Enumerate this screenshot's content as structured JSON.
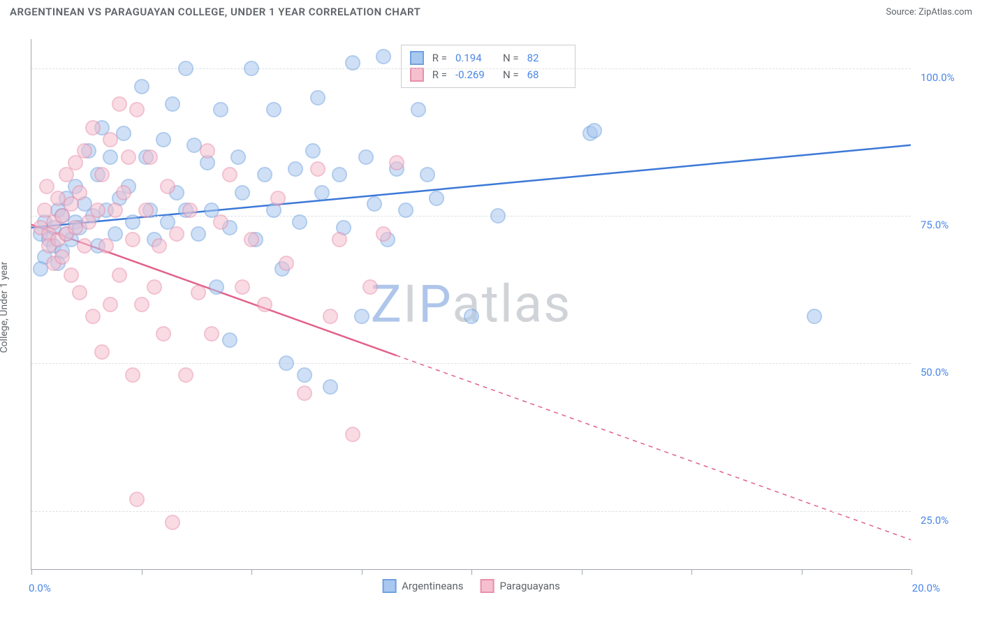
{
  "header": {
    "title": "ARGENTINEAN VS PARAGUAYAN COLLEGE, UNDER 1 YEAR CORRELATION CHART",
    "source": "Source: ZipAtlas.com"
  },
  "chart": {
    "type": "scatter",
    "ylabel": "College, Under 1 year",
    "background_color": "#ffffff",
    "grid_color": "#dcdfe3",
    "axis_color": "#a0a6ad",
    "tick_label_color": "#4a86e8",
    "label_color": "#5f6368",
    "xlim": [
      0,
      20
    ],
    "ylim": [
      15,
      105
    ],
    "xticks": [
      0,
      2.5,
      5,
      7.5,
      10,
      12.5,
      15,
      17.5,
      20
    ],
    "xtick_labels": {
      "0": "0.0%",
      "20": "20.0%"
    },
    "yticks": [
      25,
      50,
      75,
      100
    ],
    "ytick_labels": {
      "25": "25.0%",
      "50": "50.0%",
      "75": "75.0%",
      "100": "100.0%"
    },
    "marker_radius": 11,
    "marker_opacity": 0.55,
    "marker_stroke_width": 2,
    "trend_width": 2.5,
    "watermark": "ZIPatlas",
    "legend_box": {
      "left_pct": 42,
      "top_pct": 1
    },
    "series": [
      {
        "name": "Argentineans",
        "fill": "#a9c8ef",
        "stroke": "#6fa1df",
        "trend_color": "#3b78d8",
        "r": "0.194",
        "n": "82",
        "trend": {
          "x1": 0,
          "y1": 73,
          "x2": 20,
          "y2": 87,
          "dashed_after_x": null
        },
        "points": [
          [
            0.2,
            72
          ],
          [
            0.3,
            74
          ],
          [
            0.4,
            71
          ],
          [
            0.5,
            73
          ],
          [
            0.5,
            70
          ],
          [
            0.6,
            76
          ],
          [
            0.7,
            69
          ],
          [
            0.7,
            75
          ],
          [
            0.8,
            72
          ],
          [
            0.8,
            78
          ],
          [
            0.9,
            71
          ],
          [
            1.0,
            74
          ],
          [
            1.0,
            80
          ],
          [
            1.1,
            73
          ],
          [
            1.2,
            77
          ],
          [
            1.3,
            86
          ],
          [
            1.4,
            75
          ],
          [
            1.5,
            82
          ],
          [
            1.5,
            70
          ],
          [
            1.6,
            90
          ],
          [
            1.7,
            76
          ],
          [
            1.8,
            85
          ],
          [
            1.9,
            72
          ],
          [
            2.0,
            78
          ],
          [
            2.1,
            89
          ],
          [
            2.2,
            80
          ],
          [
            2.3,
            74
          ],
          [
            2.5,
            97
          ],
          [
            2.6,
            85
          ],
          [
            2.7,
            76
          ],
          [
            2.8,
            71
          ],
          [
            3.0,
            88
          ],
          [
            3.1,
            74
          ],
          [
            3.2,
            94
          ],
          [
            3.3,
            79
          ],
          [
            3.5,
            76
          ],
          [
            3.5,
            100
          ],
          [
            3.7,
            87
          ],
          [
            3.8,
            72
          ],
          [
            4.0,
            84
          ],
          [
            4.1,
            76
          ],
          [
            4.2,
            63
          ],
          [
            4.3,
            93
          ],
          [
            4.5,
            73
          ],
          [
            4.5,
            54
          ],
          [
            4.7,
            85
          ],
          [
            4.8,
            79
          ],
          [
            5.0,
            100
          ],
          [
            5.1,
            71
          ],
          [
            5.3,
            82
          ],
          [
            5.5,
            76
          ],
          [
            5.5,
            93
          ],
          [
            5.7,
            66
          ],
          [
            5.8,
            50
          ],
          [
            6.0,
            83
          ],
          [
            6.1,
            74
          ],
          [
            6.2,
            48
          ],
          [
            6.4,
            86
          ],
          [
            6.5,
            95
          ],
          [
            6.6,
            79
          ],
          [
            6.8,
            46
          ],
          [
            7.0,
            82
          ],
          [
            7.1,
            73
          ],
          [
            7.3,
            101
          ],
          [
            7.5,
            58
          ],
          [
            7.6,
            85
          ],
          [
            7.8,
            77
          ],
          [
            8.0,
            102
          ],
          [
            8.1,
            71
          ],
          [
            8.3,
            83
          ],
          [
            8.5,
            76
          ],
          [
            8.8,
            93
          ],
          [
            9.0,
            82
          ],
          [
            9.2,
            78
          ],
          [
            10.0,
            58
          ],
          [
            10.6,
            75
          ],
          [
            12.7,
            89
          ],
          [
            12.8,
            89.5
          ],
          [
            17.8,
            58
          ],
          [
            0.3,
            68
          ],
          [
            0.2,
            66
          ],
          [
            0.6,
            67
          ]
        ]
      },
      {
        "name": "Paraguayans",
        "fill": "#f5bfcf",
        "stroke": "#e98fab",
        "trend_color": "#e26088",
        "r": "-0.269",
        "n": "68",
        "trend": {
          "x1": 0,
          "y1": 73.5,
          "x2": 20,
          "y2": 20,
          "dashed_after_x": 8.3
        },
        "points": [
          [
            0.2,
            73
          ],
          [
            0.3,
            76
          ],
          [
            0.35,
            80
          ],
          [
            0.4,
            72
          ],
          [
            0.4,
            70
          ],
          [
            0.5,
            74
          ],
          [
            0.5,
            67
          ],
          [
            0.6,
            78
          ],
          [
            0.6,
            71
          ],
          [
            0.7,
            75
          ],
          [
            0.7,
            68
          ],
          [
            0.8,
            82
          ],
          [
            0.8,
            72
          ],
          [
            0.9,
            77
          ],
          [
            0.9,
            65
          ],
          [
            1.0,
            84
          ],
          [
            1.0,
            73
          ],
          [
            1.1,
            79
          ],
          [
            1.1,
            62
          ],
          [
            1.2,
            86
          ],
          [
            1.2,
            70
          ],
          [
            1.3,
            74
          ],
          [
            1.4,
            90
          ],
          [
            1.4,
            58
          ],
          [
            1.5,
            76
          ],
          [
            1.6,
            82
          ],
          [
            1.6,
            52
          ],
          [
            1.7,
            70
          ],
          [
            1.8,
            88
          ],
          [
            1.8,
            60
          ],
          [
            1.9,
            76
          ],
          [
            2.0,
            94
          ],
          [
            2.0,
            65
          ],
          [
            2.1,
            79
          ],
          [
            2.2,
            85
          ],
          [
            2.3,
            71
          ],
          [
            2.3,
            48
          ],
          [
            2.4,
            93
          ],
          [
            2.4,
            27
          ],
          [
            2.5,
            60
          ],
          [
            2.6,
            76
          ],
          [
            2.7,
            85
          ],
          [
            2.8,
            63
          ],
          [
            2.9,
            70
          ],
          [
            3.0,
            55
          ],
          [
            3.1,
            80
          ],
          [
            3.2,
            23
          ],
          [
            3.3,
            72
          ],
          [
            3.5,
            48
          ],
          [
            3.6,
            76
          ],
          [
            3.8,
            62
          ],
          [
            4.0,
            86
          ],
          [
            4.1,
            55
          ],
          [
            4.3,
            74
          ],
          [
            4.5,
            82
          ],
          [
            4.8,
            63
          ],
          [
            5.0,
            71
          ],
          [
            5.3,
            60
          ],
          [
            5.6,
            78
          ],
          [
            5.8,
            67
          ],
          [
            6.2,
            45
          ],
          [
            6.5,
            83
          ],
          [
            6.8,
            58
          ],
          [
            7.0,
            71
          ],
          [
            7.3,
            38
          ],
          [
            7.7,
            63
          ],
          [
            8.0,
            72
          ],
          [
            8.3,
            84
          ]
        ]
      }
    ]
  }
}
